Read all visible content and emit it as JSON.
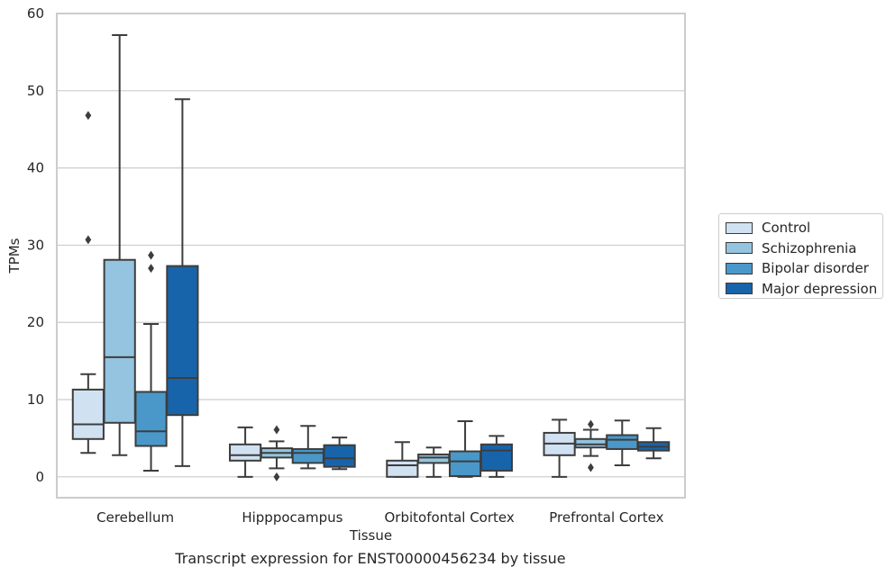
{
  "chart_data": {
    "type": "box",
    "xlabel": "Tissue",
    "ylabel": "TPMs",
    "caption": "Transcript expression for ENST00000456234 by tissue",
    "ylim": [
      -2.7,
      60
    ],
    "yticks": [
      0,
      10,
      20,
      30,
      40,
      50,
      60
    ],
    "grid": "horizontal",
    "legend_position": "right",
    "categories": [
      "Cerebellum",
      "Hipppocampus",
      "Orbitofontal Cortex",
      "Prefrontal Cortex"
    ],
    "series": [
      {
        "name": "Control",
        "color": "#d0e1f2",
        "boxes": [
          {
            "whisker_low": 3.1,
            "q1": 4.9,
            "median": 6.8,
            "q3": 11.3,
            "whisker_high": 13.3,
            "outliers": [
              30.7,
              46.8
            ]
          },
          {
            "whisker_low": 0.0,
            "q1": 2.1,
            "median": 2.8,
            "q3": 4.2,
            "whisker_high": 6.4,
            "outliers": []
          },
          {
            "whisker_low": 0.0,
            "q1": 0.0,
            "median": 1.5,
            "q3": 2.1,
            "whisker_high": 4.5,
            "outliers": []
          },
          {
            "whisker_low": 0.0,
            "q1": 2.8,
            "median": 4.3,
            "q3": 5.7,
            "whisker_high": 7.4,
            "outliers": []
          }
        ]
      },
      {
        "name": "Schizophrenia",
        "color": "#94c4df",
        "boxes": [
          {
            "whisker_low": 2.8,
            "q1": 7.0,
            "median": 15.5,
            "q3": 28.1,
            "whisker_high": 57.2,
            "outliers": []
          },
          {
            "whisker_low": 1.1,
            "q1": 2.5,
            "median": 3.1,
            "q3": 3.7,
            "whisker_high": 4.6,
            "outliers": [
              6.1,
              0.0
            ]
          },
          {
            "whisker_low": 0.0,
            "q1": 1.8,
            "median": 2.5,
            "q3": 2.9,
            "whisker_high": 3.8,
            "outliers": []
          },
          {
            "whisker_low": 2.7,
            "q1": 3.8,
            "median": 4.2,
            "q3": 4.9,
            "whisker_high": 6.1,
            "outliers": [
              6.8,
              1.2
            ]
          }
        ]
      },
      {
        "name": "Bipolar disorder",
        "color": "#4a98c9",
        "boxes": [
          {
            "whisker_low": 0.8,
            "q1": 4.0,
            "median": 5.9,
            "q3": 11.0,
            "whisker_high": 19.8,
            "outliers": [
              27.0,
              28.7
            ]
          },
          {
            "whisker_low": 1.1,
            "q1": 1.8,
            "median": 3.1,
            "q3": 3.6,
            "whisker_high": 6.6,
            "outliers": []
          },
          {
            "whisker_low": 0.0,
            "q1": 0.1,
            "median": 2.0,
            "q3": 3.3,
            "whisker_high": 7.2,
            "outliers": []
          },
          {
            "whisker_low": 1.5,
            "q1": 3.6,
            "median": 4.8,
            "q3": 5.4,
            "whisker_high": 7.3,
            "outliers": []
          }
        ]
      },
      {
        "name": "Major depression",
        "color": "#1764ab",
        "boxes": [
          {
            "whisker_low": 1.4,
            "q1": 8.0,
            "median": 12.8,
            "q3": 27.3,
            "whisker_high": 48.9,
            "outliers": []
          },
          {
            "whisker_low": 1.0,
            "q1": 1.3,
            "median": 2.4,
            "q3": 4.1,
            "whisker_high": 5.1,
            "outliers": []
          },
          {
            "whisker_low": 0.0,
            "q1": 0.8,
            "median": 3.4,
            "q3": 4.2,
            "whisker_high": 5.3,
            "outliers": []
          },
          {
            "whisker_low": 2.4,
            "q1": 3.4,
            "median": 3.9,
            "q3": 4.5,
            "whisker_high": 6.3,
            "outliers": []
          }
        ]
      }
    ]
  }
}
